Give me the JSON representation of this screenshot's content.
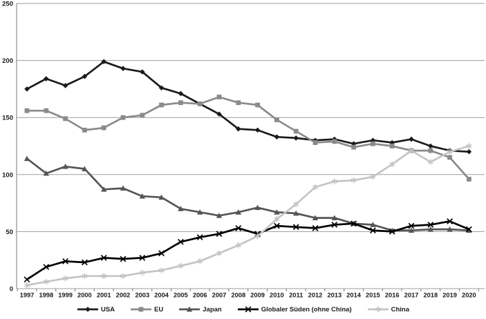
{
  "chart_data": {
    "type": "line",
    "title": "",
    "xlabel": "",
    "ylabel": "",
    "categories": [
      "1997",
      "1998",
      "1999",
      "2000",
      "2001",
      "2002",
      "2003",
      "2004",
      "2005",
      "2006",
      "2007",
      "2008",
      "2009",
      "2010",
      "2011",
      "2012",
      "2013",
      "2014",
      "2015",
      "2016",
      "2017",
      "2018",
      "2019",
      "2020"
    ],
    "ylim": [
      0,
      250
    ],
    "yticks": [
      0,
      50,
      100,
      150,
      200,
      250
    ],
    "grid": true,
    "legend_position": "bottom",
    "series": [
      {
        "name": "USA",
        "marker": "diamond",
        "color": "#1a1a1a",
        "values": [
          175,
          184,
          178,
          186,
          199,
          193,
          190,
          176,
          171,
          162,
          153,
          140,
          139,
          133,
          132,
          130,
          131,
          127,
          130,
          128,
          131,
          125,
          121,
          120
        ]
      },
      {
        "name": "EU",
        "marker": "square",
        "color": "#8a8a8a",
        "values": [
          156,
          156,
          149,
          139,
          141,
          150,
          152,
          161,
          163,
          162,
          168,
          163,
          161,
          148,
          138,
          128,
          129,
          124,
          127,
          125,
          121,
          121,
          115,
          96
        ]
      },
      {
        "name": "Japan",
        "marker": "triangle",
        "color": "#555555",
        "values": [
          114,
          101,
          107,
          105,
          87,
          88,
          81,
          80,
          70,
          67,
          64,
          67,
          71,
          67,
          66,
          62,
          62,
          57,
          56,
          51,
          51,
          52,
          52,
          51
        ]
      },
      {
        "name": "Globaler Süden (ohne China)",
        "marker": "x",
        "color": "#000000",
        "values": [
          8,
          19,
          24,
          23,
          27,
          26,
          27,
          31,
          41,
          45,
          48,
          53,
          48,
          55,
          54,
          53,
          56,
          57,
          51,
          50,
          55,
          56,
          59,
          52
        ]
      },
      {
        "name": "China",
        "marker": "asterisk",
        "color": "#c4c4c4",
        "values": [
          3,
          6,
          9,
          11,
          11,
          11,
          14,
          16,
          20,
          24,
          31,
          38,
          46,
          61,
          74,
          89,
          94,
          95,
          98,
          109,
          121,
          111,
          120,
          125
        ]
      }
    ],
    "axis_colors": {
      "gridline": "#9d9d9d",
      "axis_line": "#7a7a7a",
      "tick": "#7a7a7a"
    }
  }
}
